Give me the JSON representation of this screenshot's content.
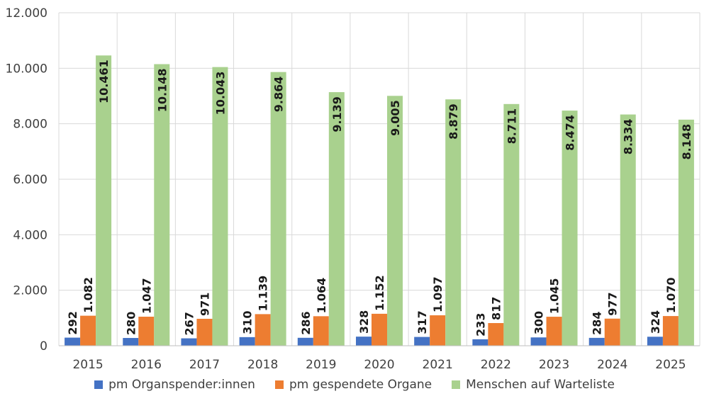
{
  "chart_data": {
    "type": "bar",
    "categories": [
      "2015",
      "2016",
      "2017",
      "2018",
      "2019",
      "2020",
      "2021",
      "2022",
      "2023",
      "2024",
      "2025"
    ],
    "series": [
      {
        "name": "pm Organspender:innen",
        "color": "#4472C4",
        "values": [
          292,
          280,
          267,
          310,
          286,
          328,
          317,
          233,
          300,
          284,
          324
        ],
        "labels": [
          "292",
          "280",
          "267",
          "310",
          "286",
          "328",
          "317",
          "233",
          "300",
          "284",
          "324"
        ]
      },
      {
        "name": "pm gespendete Organe",
        "color": "#ED7D31",
        "values": [
          1082,
          1047,
          971,
          1139,
          1064,
          1152,
          1097,
          817,
          1045,
          977,
          1070
        ],
        "labels": [
          "1.082",
          "1.047",
          "971",
          "1.139",
          "1.064",
          "1.152",
          "1.097",
          "817",
          "1.045",
          "977",
          "1.070"
        ]
      },
      {
        "name": "Menschen auf Warteliste",
        "color": "#A9D18E",
        "values": [
          10461,
          10148,
          10043,
          9864,
          9139,
          9005,
          8879,
          8711,
          8474,
          8334,
          8148
        ],
        "labels": [
          "10.461",
          "10.148",
          "10.043",
          "9.864",
          "9.139",
          "9.005",
          "8.879",
          "8.711",
          "8.474",
          "8.334",
          "8.148"
        ]
      }
    ],
    "y_ticks": [
      0,
      2000,
      4000,
      6000,
      8000,
      10000,
      12000
    ],
    "y_tick_labels": [
      "0",
      "2.000",
      "4.000",
      "6.000",
      "8.000",
      "10.000",
      "12.000"
    ],
    "ylim": [
      0,
      12000
    ],
    "title": "",
    "xlabel": "",
    "ylabel": "",
    "grid": true,
    "legend_position": "bottom"
  }
}
